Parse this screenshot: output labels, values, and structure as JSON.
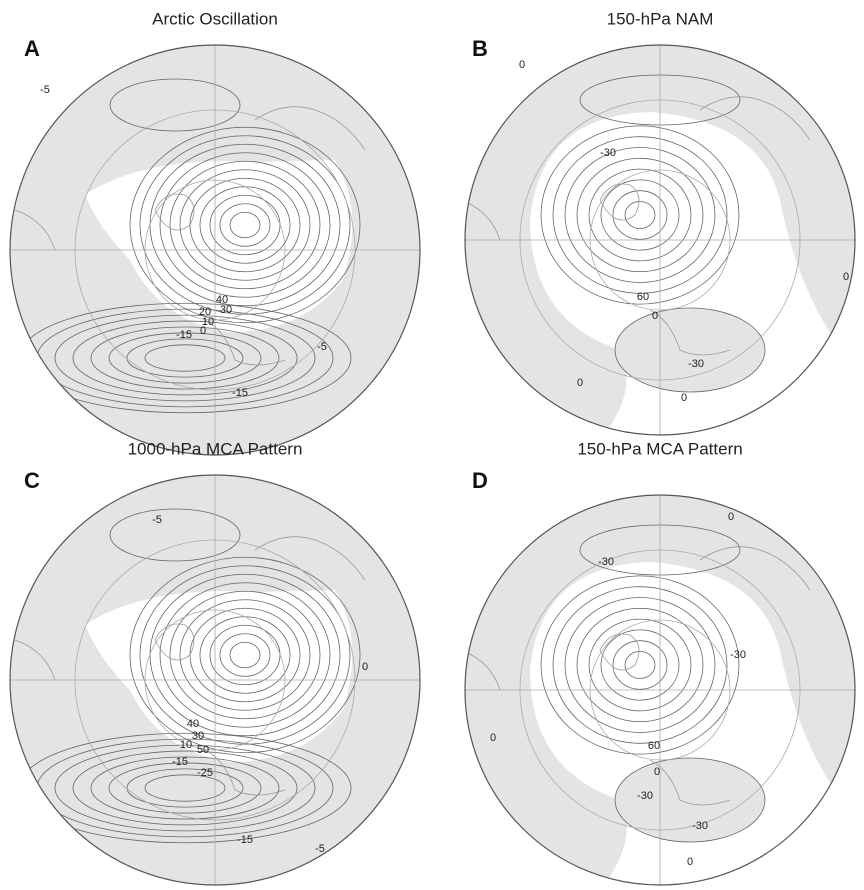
{
  "panels": [
    {
      "letter": "A",
      "title": "Arctic Oscillation",
      "contour_labels": [
        -5,
        40,
        20,
        30,
        10,
        0,
        -15,
        -5,
        -15
      ]
    },
    {
      "letter": "B",
      "title": "150-hPa NAM",
      "contour_labels": [
        0,
        -30,
        60,
        0,
        -30,
        0,
        0,
        0
      ]
    },
    {
      "letter": "C",
      "title": "1000-hPa MCA Pattern",
      "contour_labels": [
        -5,
        40,
        30,
        10,
        50,
        -15,
        -25,
        -15,
        -5,
        0
      ]
    },
    {
      "letter": "D",
      "title": "150-hPa MCA Pattern",
      "contour_labels": [
        0,
        -30,
        -30,
        60,
        0,
        -30,
        -30,
        0,
        0
      ]
    }
  ]
}
